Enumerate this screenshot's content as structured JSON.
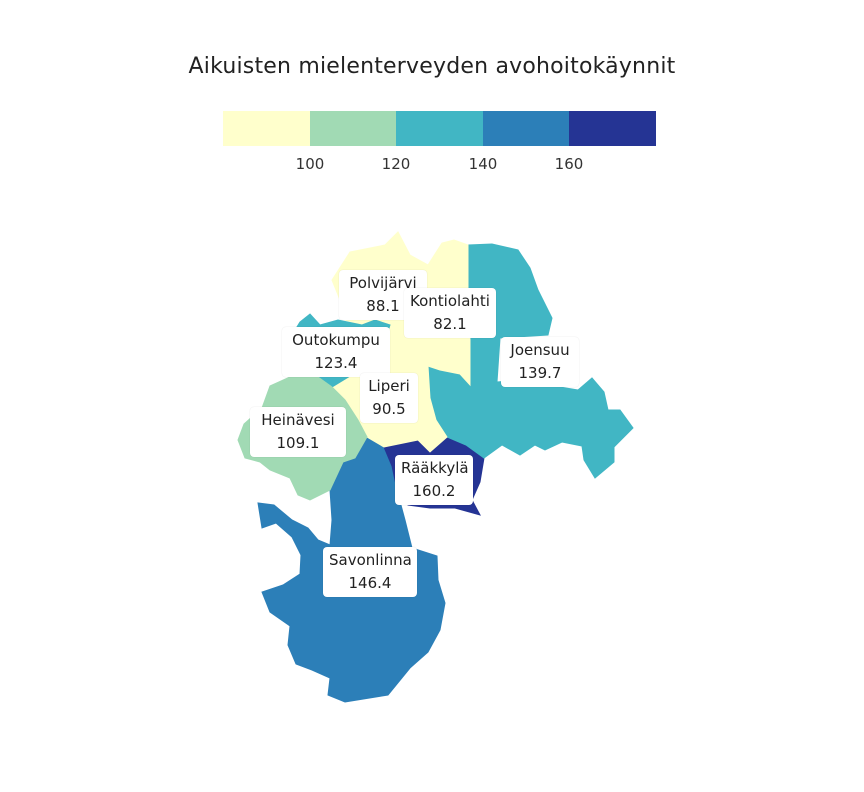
{
  "title": "Aikuisten mielenterveyden avohoitokäynnit",
  "legend": {
    "colors": [
      "#ffffcc",
      "#a1dab4",
      "#41b6c4",
      "#2c7fb8",
      "#253494"
    ],
    "ticks": [
      "100",
      "120",
      "140",
      "160"
    ]
  },
  "regions": [
    {
      "name": "Polvijärvi",
      "value": "88.1",
      "color": "#ffffcc"
    },
    {
      "name": "Kontiolahti",
      "value": "82.1",
      "color": "#ffffcc"
    },
    {
      "name": "Outokumpu",
      "value": "123.4",
      "color": "#41b6c4"
    },
    {
      "name": "Joensuu",
      "value": "139.7",
      "color": "#41b6c4"
    },
    {
      "name": "Liperi",
      "value": "90.5",
      "color": "#ffffcc"
    },
    {
      "name": "Heinävesi",
      "value": "109.1",
      "color": "#a1dab4"
    },
    {
      "name": "Rääkkylä",
      "value": "160.2",
      "color": "#253494"
    },
    {
      "name": "Savonlinna",
      "value": "146.4",
      "color": "#2c7fb8"
    }
  ]
}
